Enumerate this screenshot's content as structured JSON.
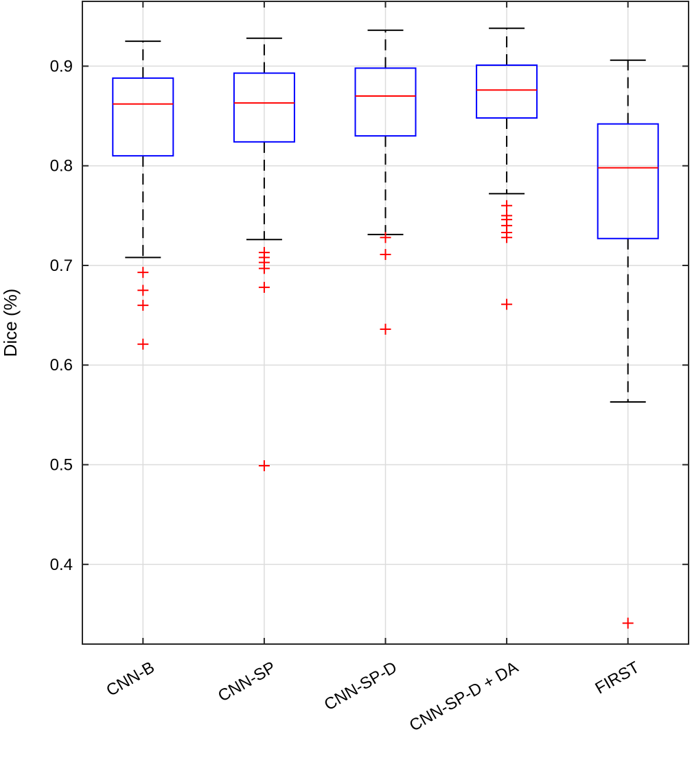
{
  "chart_data": {
    "type": "box",
    "ylabel": "Dice (%)",
    "xlabel": "",
    "ylim": [
      0.32,
      0.965
    ],
    "yticks": [
      0.4,
      0.5,
      0.6,
      0.7,
      0.8,
      0.9
    ],
    "ytick_labels": [
      "0.4",
      "0.5",
      "0.6",
      "0.7",
      "0.8",
      "0.9"
    ],
    "grid": true,
    "colors": {
      "box": "#0000ff",
      "median": "#ff0000",
      "whisker": "#000000",
      "outlier": "#ff0000",
      "grid": "#dcdcdc",
      "axis": "#262626"
    },
    "categories": [
      "CNN-B",
      "CNN-SP",
      "CNN-SP-D",
      "CNN-SP-D + DA",
      "FIRST"
    ],
    "boxes": [
      {
        "label": "CNN-B",
        "whisker_low": 0.708,
        "q1": 0.81,
        "median": 0.862,
        "q3": 0.888,
        "whisker_high": 0.925,
        "outliers": [
          0.693,
          0.675,
          0.66,
          0.621
        ]
      },
      {
        "label": "CNN-SP",
        "whisker_low": 0.726,
        "q1": 0.824,
        "median": 0.863,
        "q3": 0.893,
        "whisker_high": 0.928,
        "outliers": [
          0.713,
          0.708,
          0.703,
          0.697,
          0.678,
          0.499
        ]
      },
      {
        "label": "CNN-SP-D",
        "whisker_low": 0.731,
        "q1": 0.83,
        "median": 0.87,
        "q3": 0.898,
        "whisker_high": 0.936,
        "outliers": [
          0.728,
          0.711,
          0.636
        ]
      },
      {
        "label": "CNN-SP-D + DA",
        "whisker_low": 0.772,
        "q1": 0.848,
        "median": 0.876,
        "q3": 0.901,
        "whisker_high": 0.938,
        "outliers": [
          0.76,
          0.75,
          0.746,
          0.74,
          0.733,
          0.728,
          0.661
        ]
      },
      {
        "label": "FIRST",
        "whisker_low": 0.563,
        "q1": 0.727,
        "median": 0.798,
        "q3": 0.842,
        "whisker_high": 0.906,
        "outliers": [
          0.341
        ]
      }
    ]
  }
}
